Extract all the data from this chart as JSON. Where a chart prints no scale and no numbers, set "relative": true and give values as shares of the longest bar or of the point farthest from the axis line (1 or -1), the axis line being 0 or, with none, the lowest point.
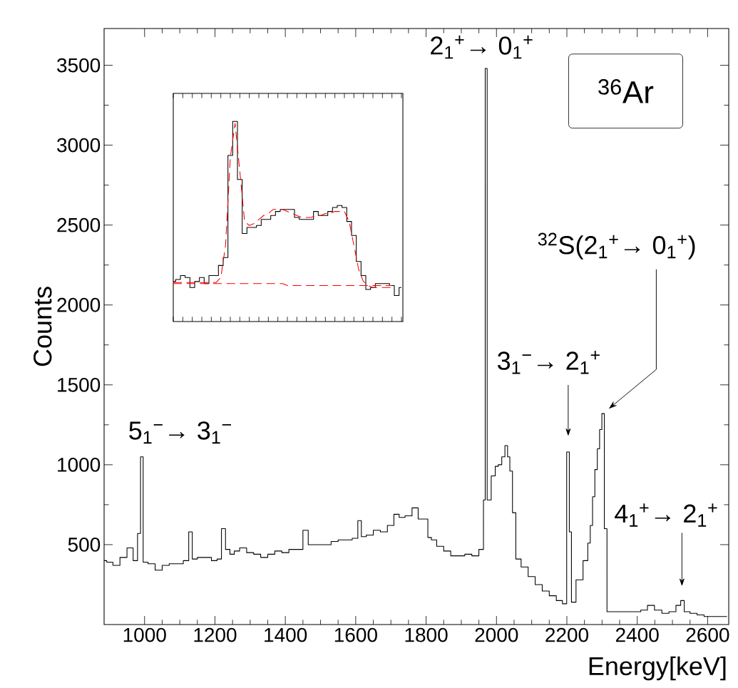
{
  "chart_data": [
    {
      "type": "step",
      "xlabel": "Energy[keV]",
      "ylabel": "Counts",
      "color": "#000000",
      "x": [
        885,
        900,
        920,
        940,
        960,
        975,
        985,
        992,
        1000,
        1020,
        1040,
        1060,
        1080,
        1100,
        1120,
        1131,
        1140,
        1160,
        1180,
        1200,
        1212,
        1225,
        1235,
        1250,
        1260,
        1280,
        1300,
        1320,
        1340,
        1360,
        1380,
        1400,
        1420,
        1440,
        1460,
        1470,
        1480,
        1500,
        1520,
        1540,
        1560,
        1580,
        1600,
        1612,
        1620,
        1640,
        1660,
        1680,
        1700,
        1717,
        1730,
        1750,
        1770,
        1785,
        1800,
        1810,
        1820,
        1840,
        1860,
        1880,
        1900,
        1920,
        1940,
        1960,
        1966,
        1970,
        1977,
        1993,
        2000,
        2010,
        2020,
        2028,
        2035,
        2041,
        2050,
        2060,
        2080,
        2100,
        2120,
        2140,
        2160,
        2180,
        2195,
        2204,
        2210,
        2216,
        2236,
        2256,
        2263,
        2270,
        2276,
        2283,
        2290,
        2296,
        2303,
        2310,
        2318,
        2340,
        2360,
        2380,
        2400,
        2420,
        2438,
        2460,
        2480,
        2500,
        2520,
        2527,
        2540,
        2560,
        2580,
        2600,
        2620,
        2640,
        2655
      ],
      "values": [
        400,
        390,
        370,
        420,
        480,
        400,
        570,
        1050,
        390,
        380,
        340,
        370,
        380,
        380,
        400,
        580,
        410,
        420,
        420,
        400,
        410,
        600,
        470,
        440,
        460,
        480,
        450,
        440,
        420,
        440,
        460,
        450,
        470,
        470,
        590,
        500,
        500,
        500,
        500,
        520,
        530,
        530,
        540,
        650,
        550,
        560,
        590,
        580,
        620,
        690,
        670,
        680,
        730,
        660,
        660,
        545,
        530,
        490,
        460,
        430,
        430,
        440,
        430,
        470,
        780,
        3480,
        780,
        930,
        990,
        1000,
        1050,
        1120,
        1050,
        960,
        700,
        410,
        360,
        300,
        250,
        210,
        180,
        150,
        130,
        1080,
        580,
        140,
        280,
        400,
        510,
        620,
        800,
        970,
        1100,
        1220,
        1320,
        600,
        80,
        80,
        80,
        80,
        80,
        90,
        120,
        90,
        70,
        80,
        120,
        150,
        80,
        70,
        60,
        50,
        50,
        50,
        50
      ],
      "xlim": [
        885,
        2660
      ],
      "ylim": [
        0,
        3730
      ],
      "xticks": [
        1000,
        1200,
        1400,
        1600,
        1800,
        2000,
        2200,
        2400,
        2600
      ],
      "yticks": [
        500,
        1000,
        1500,
        2000,
        2500,
        3000,
        3500
      ],
      "annotations": [
        "$^{36}$Ar",
        {
          "text": "2$_{1}$$^{+}$→ 0$_{1}$$^{+}$",
          "x": 1970,
          "y": 3480
        },
        "$^{32}$S(2$_{1}$$^{+}$→ 0$_{1}$$^{+}$)",
        "3$_{1}$$^{−}$→ 2$_{1}$$^{+}$",
        {
          "text": "5$_{1}$$^{−}$→ 3$_{1}$$^{−}$",
          "x": 992,
          "y": 1050
        },
        {
          "text": "4$_{1}$$^{+}$→ 2$_{1}$$^{+}$",
          "x": 2527,
          "y": 150
        }
      ]
    },
    {
      "type": "step",
      "relative": true,
      "categories": [
        null,
        null,
        null,
        null,
        null,
        null,
        null,
        null,
        null,
        null,
        null,
        null,
        null,
        null,
        null,
        null,
        null,
        null,
        null,
        null,
        null,
        null,
        null,
        null,
        null,
        null,
        null,
        null,
        null,
        null,
        null,
        null,
        null,
        null,
        null,
        null,
        null,
        null,
        null,
        null,
        null,
        null,
        null,
        null,
        null,
        null,
        null,
        null,
        null
      ],
      "series": [
        {
          "type": "step",
          "color": "#000000",
          "values": [
            0.2,
            0.21,
            0.23,
            0.22,
            0.17,
            0.2,
            0.22,
            0.19,
            0.23,
            0.23,
            0.28,
            0.32,
            0.83,
            1.0,
            0.71,
            0.44,
            0.47,
            0.47,
            0.48,
            0.51,
            0.51,
            0.53,
            0.55,
            0.56,
            0.56,
            0.56,
            0.52,
            0.51,
            0.51,
            0.51,
            0.55,
            0.53,
            0.53,
            0.55,
            0.57,
            0.58,
            0.57,
            0.5,
            0.43,
            0.3,
            0.23,
            0.16,
            0.17,
            0.19,
            0.19,
            0.19,
            0.18,
            0.13,
            0.17
          ]
        },
        {
          "type": "line",
          "color": "#ff0000",
          "line_style": "dashed",
          "values": [
            0.195,
            0.195,
            0.195,
            0.195,
            0.195,
            0.195,
            0.195,
            0.195,
            0.195,
            0.195,
            0.22,
            0.38,
            0.82,
            0.99,
            0.75,
            0.5,
            0.48,
            0.49,
            0.51,
            0.53,
            0.54,
            0.56,
            0.56,
            0.56,
            0.55,
            0.54,
            0.53,
            0.52,
            0.52,
            0.52,
            0.53,
            0.53,
            0.54,
            0.54,
            0.55,
            0.55,
            0.55,
            0.5,
            0.38,
            0.26,
            0.2,
            0.18,
            0.17,
            0.17,
            0.17,
            0.17,
            0.17,
            null,
            null
          ]
        },
        {
          "type": "line",
          "color": "#ff0000",
          "line_style": "dashed",
          "values": [
            0.19,
            0.19,
            0.19,
            0.19,
            0.19,
            0.19,
            0.19,
            0.19,
            0.19,
            0.19,
            0.19,
            0.19,
            0.19,
            0.19,
            0.19,
            0.19,
            0.19,
            0.19,
            0.19,
            0.19,
            0.19,
            0.19,
            0.19,
            0.19,
            0.18,
            0.18,
            0.18,
            0.18,
            0.18,
            0.18,
            0.18,
            0.18,
            0.18,
            0.18,
            0.18,
            0.18,
            0.18,
            0.18,
            0.18,
            0.18,
            0.18,
            0.18,
            0.18,
            0.18,
            0.18,
            0.18,
            0.18,
            null,
            null
          ]
        }
      ]
    }
  ]
}
